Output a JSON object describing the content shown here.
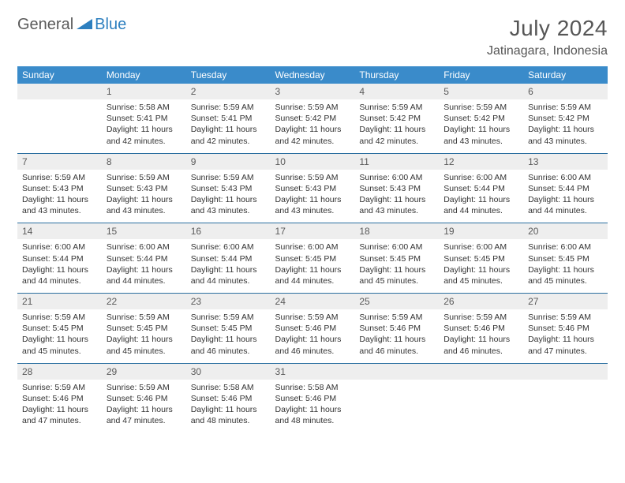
{
  "brand": {
    "part1": "General",
    "part2": "Blue"
  },
  "title": "July 2024",
  "location": "Jatinagara, Indonesia",
  "colors": {
    "header_bg": "#3a8bca",
    "header_text": "#ffffff",
    "daynum_bg": "#eeeeee",
    "rule": "#2b6fa0",
    "text": "#333333",
    "brand_gray": "#5a5a5a",
    "brand_blue": "#2d7fbf"
  },
  "weekdays": [
    "Sunday",
    "Monday",
    "Tuesday",
    "Wednesday",
    "Thursday",
    "Friday",
    "Saturday"
  ],
  "weeks": [
    [
      null,
      {
        "n": "1",
        "sr": "Sunrise: 5:58 AM",
        "ss": "Sunset: 5:41 PM",
        "d1": "Daylight: 11 hours",
        "d2": "and 42 minutes."
      },
      {
        "n": "2",
        "sr": "Sunrise: 5:59 AM",
        "ss": "Sunset: 5:41 PM",
        "d1": "Daylight: 11 hours",
        "d2": "and 42 minutes."
      },
      {
        "n": "3",
        "sr": "Sunrise: 5:59 AM",
        "ss": "Sunset: 5:42 PM",
        "d1": "Daylight: 11 hours",
        "d2": "and 42 minutes."
      },
      {
        "n": "4",
        "sr": "Sunrise: 5:59 AM",
        "ss": "Sunset: 5:42 PM",
        "d1": "Daylight: 11 hours",
        "d2": "and 42 minutes."
      },
      {
        "n": "5",
        "sr": "Sunrise: 5:59 AM",
        "ss": "Sunset: 5:42 PM",
        "d1": "Daylight: 11 hours",
        "d2": "and 43 minutes."
      },
      {
        "n": "6",
        "sr": "Sunrise: 5:59 AM",
        "ss": "Sunset: 5:42 PM",
        "d1": "Daylight: 11 hours",
        "d2": "and 43 minutes."
      }
    ],
    [
      {
        "n": "7",
        "sr": "Sunrise: 5:59 AM",
        "ss": "Sunset: 5:43 PM",
        "d1": "Daylight: 11 hours",
        "d2": "and 43 minutes."
      },
      {
        "n": "8",
        "sr": "Sunrise: 5:59 AM",
        "ss": "Sunset: 5:43 PM",
        "d1": "Daylight: 11 hours",
        "d2": "and 43 minutes."
      },
      {
        "n": "9",
        "sr": "Sunrise: 5:59 AM",
        "ss": "Sunset: 5:43 PM",
        "d1": "Daylight: 11 hours",
        "d2": "and 43 minutes."
      },
      {
        "n": "10",
        "sr": "Sunrise: 5:59 AM",
        "ss": "Sunset: 5:43 PM",
        "d1": "Daylight: 11 hours",
        "d2": "and 43 minutes."
      },
      {
        "n": "11",
        "sr": "Sunrise: 6:00 AM",
        "ss": "Sunset: 5:43 PM",
        "d1": "Daylight: 11 hours",
        "d2": "and 43 minutes."
      },
      {
        "n": "12",
        "sr": "Sunrise: 6:00 AM",
        "ss": "Sunset: 5:44 PM",
        "d1": "Daylight: 11 hours",
        "d2": "and 44 minutes."
      },
      {
        "n": "13",
        "sr": "Sunrise: 6:00 AM",
        "ss": "Sunset: 5:44 PM",
        "d1": "Daylight: 11 hours",
        "d2": "and 44 minutes."
      }
    ],
    [
      {
        "n": "14",
        "sr": "Sunrise: 6:00 AM",
        "ss": "Sunset: 5:44 PM",
        "d1": "Daylight: 11 hours",
        "d2": "and 44 minutes."
      },
      {
        "n": "15",
        "sr": "Sunrise: 6:00 AM",
        "ss": "Sunset: 5:44 PM",
        "d1": "Daylight: 11 hours",
        "d2": "and 44 minutes."
      },
      {
        "n": "16",
        "sr": "Sunrise: 6:00 AM",
        "ss": "Sunset: 5:44 PM",
        "d1": "Daylight: 11 hours",
        "d2": "and 44 minutes."
      },
      {
        "n": "17",
        "sr": "Sunrise: 6:00 AM",
        "ss": "Sunset: 5:45 PM",
        "d1": "Daylight: 11 hours",
        "d2": "and 44 minutes."
      },
      {
        "n": "18",
        "sr": "Sunrise: 6:00 AM",
        "ss": "Sunset: 5:45 PM",
        "d1": "Daylight: 11 hours",
        "d2": "and 45 minutes."
      },
      {
        "n": "19",
        "sr": "Sunrise: 6:00 AM",
        "ss": "Sunset: 5:45 PM",
        "d1": "Daylight: 11 hours",
        "d2": "and 45 minutes."
      },
      {
        "n": "20",
        "sr": "Sunrise: 6:00 AM",
        "ss": "Sunset: 5:45 PM",
        "d1": "Daylight: 11 hours",
        "d2": "and 45 minutes."
      }
    ],
    [
      {
        "n": "21",
        "sr": "Sunrise: 5:59 AM",
        "ss": "Sunset: 5:45 PM",
        "d1": "Daylight: 11 hours",
        "d2": "and 45 minutes."
      },
      {
        "n": "22",
        "sr": "Sunrise: 5:59 AM",
        "ss": "Sunset: 5:45 PM",
        "d1": "Daylight: 11 hours",
        "d2": "and 45 minutes."
      },
      {
        "n": "23",
        "sr": "Sunrise: 5:59 AM",
        "ss": "Sunset: 5:45 PM",
        "d1": "Daylight: 11 hours",
        "d2": "and 46 minutes."
      },
      {
        "n": "24",
        "sr": "Sunrise: 5:59 AM",
        "ss": "Sunset: 5:46 PM",
        "d1": "Daylight: 11 hours",
        "d2": "and 46 minutes."
      },
      {
        "n": "25",
        "sr": "Sunrise: 5:59 AM",
        "ss": "Sunset: 5:46 PM",
        "d1": "Daylight: 11 hours",
        "d2": "and 46 minutes."
      },
      {
        "n": "26",
        "sr": "Sunrise: 5:59 AM",
        "ss": "Sunset: 5:46 PM",
        "d1": "Daylight: 11 hours",
        "d2": "and 46 minutes."
      },
      {
        "n": "27",
        "sr": "Sunrise: 5:59 AM",
        "ss": "Sunset: 5:46 PM",
        "d1": "Daylight: 11 hours",
        "d2": "and 47 minutes."
      }
    ],
    [
      {
        "n": "28",
        "sr": "Sunrise: 5:59 AM",
        "ss": "Sunset: 5:46 PM",
        "d1": "Daylight: 11 hours",
        "d2": "and 47 minutes."
      },
      {
        "n": "29",
        "sr": "Sunrise: 5:59 AM",
        "ss": "Sunset: 5:46 PM",
        "d1": "Daylight: 11 hours",
        "d2": "and 47 minutes."
      },
      {
        "n": "30",
        "sr": "Sunrise: 5:58 AM",
        "ss": "Sunset: 5:46 PM",
        "d1": "Daylight: 11 hours",
        "d2": "and 48 minutes."
      },
      {
        "n": "31",
        "sr": "Sunrise: 5:58 AM",
        "ss": "Sunset: 5:46 PM",
        "d1": "Daylight: 11 hours",
        "d2": "and 48 minutes."
      },
      null,
      null,
      null
    ]
  ]
}
